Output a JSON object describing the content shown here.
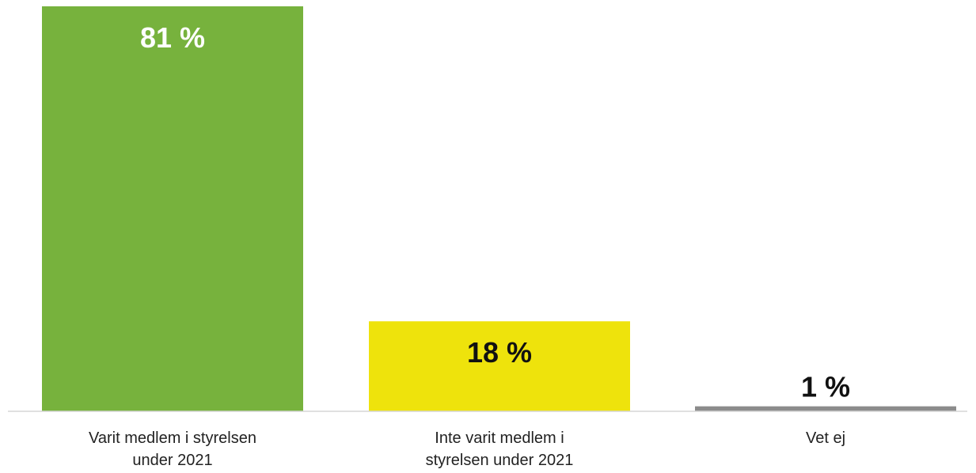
{
  "chart_data": {
    "type": "bar",
    "categories": [
      [
        "Varit medlem i styrelsen",
        "under 2021"
      ],
      [
        "Inte varit medlem i",
        "styrelsen under 2021"
      ],
      [
        "Vet ej"
      ]
    ],
    "values": [
      81,
      18,
      1
    ],
    "value_labels": [
      "81 %",
      "18 %",
      "1 %"
    ],
    "colors": [
      "#77b23d",
      "#eee30c",
      "#8c8c8c"
    ],
    "label_colors": [
      "#ffffff",
      "#111111",
      "#111111"
    ],
    "unit": "%",
    "ylim": [
      0,
      81
    ],
    "grid": false,
    "legend": "none"
  }
}
